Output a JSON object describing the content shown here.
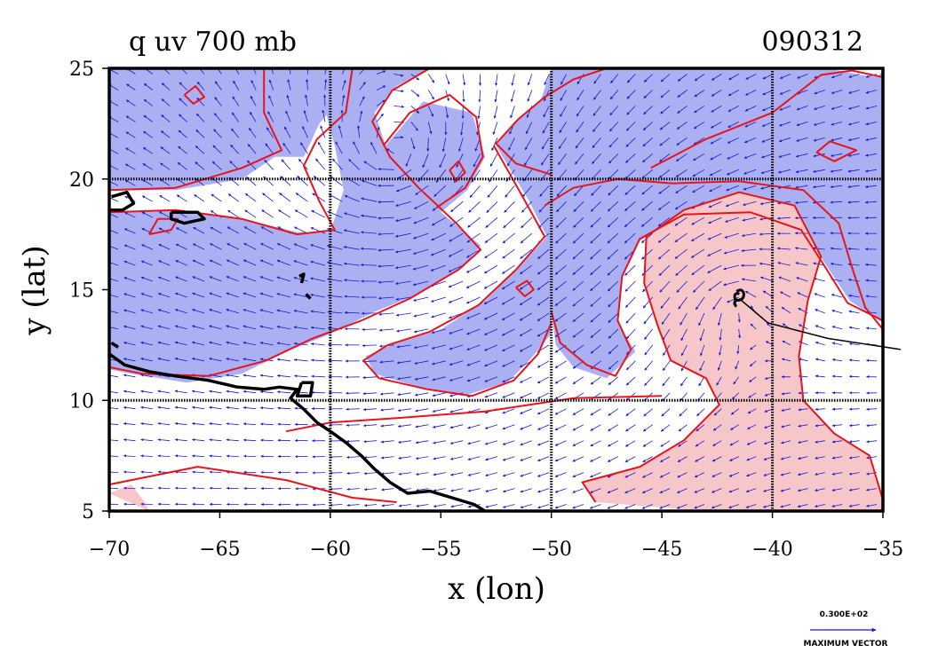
{
  "chart_data": {
    "type": "contour",
    "title_left": "q uv 700 mb",
    "title_right": "090312",
    "xlabel": "x (lon)",
    "ylabel": "y (lat)",
    "xlim": [
      -70,
      -35
    ],
    "ylim": [
      5,
      25
    ],
    "x_ticks": [
      {
        "value": -70,
        "label": "−70"
      },
      {
        "value": -65,
        "label": "−65"
      },
      {
        "value": -60,
        "label": "−60"
      },
      {
        "value": -55,
        "label": "−55"
      },
      {
        "value": -50,
        "label": "−50"
      },
      {
        "value": -45,
        "label": "−45"
      },
      {
        "value": -40,
        "label": "−40"
      },
      {
        "value": -35,
        "label": "−35"
      }
    ],
    "y_ticks": [
      {
        "value": 5,
        "label": "5"
      },
      {
        "value": 10,
        "label": "10"
      },
      {
        "value": 15,
        "label": "15"
      },
      {
        "value": 20,
        "label": "20"
      },
      {
        "value": 25,
        "label": "25"
      }
    ],
    "gridlines_lon": [
      -60,
      -50,
      -40
    ],
    "gridlines_lat": [
      10,
      20
    ],
    "vector_legend": {
      "value": "0.300E+02",
      "caption": "MAXIMUM VECTOR"
    },
    "colors": {
      "dry_fill": "#aab0f2",
      "moist_fill": "#f6c6c8",
      "contour": "#e8141c",
      "vector": "#1a1ad6",
      "coast": "#000000",
      "grid": "#000000"
    },
    "storm_center": {
      "lon": -41.5,
      "lat": 14.6
    },
    "storm_track": [
      [
        -41.5,
        14.6
      ],
      [
        -40.2,
        13.5
      ],
      [
        -37.5,
        12.8
      ],
      [
        -34.2,
        12.3
      ]
    ],
    "regions_dry": [
      [
        [
          -70,
          25
        ],
        [
          -63,
          25
        ],
        [
          -63.5,
          23
        ],
        [
          -62.5,
          21
        ],
        [
          -64,
          20
        ],
        [
          -67,
          19.5
        ],
        [
          -70,
          19.5
        ]
      ],
      [
        [
          -63,
          25
        ],
        [
          -59,
          25
        ],
        [
          -59.2,
          24
        ],
        [
          -60.5,
          22.5
        ],
        [
          -61.2,
          21
        ],
        [
          -62.5,
          21
        ],
        [
          -63.5,
          23
        ]
      ],
      [
        [
          -59,
          25
        ],
        [
          -55.5,
          25
        ],
        [
          -57,
          24.2
        ],
        [
          -58,
          23
        ],
        [
          -57.5,
          21.5
        ],
        [
          -56.2,
          20
        ],
        [
          -55,
          18.5
        ],
        [
          -53.2,
          17
        ],
        [
          -54,
          16
        ],
        [
          -56,
          14.8
        ],
        [
          -58,
          14
        ],
        [
          -60,
          13
        ],
        [
          -62,
          12.2
        ],
        [
          -64,
          11.2
        ],
        [
          -66.5,
          10.8
        ],
        [
          -69,
          11.2
        ],
        [
          -70,
          11.4
        ],
        [
          -70,
          18.5
        ],
        [
          -67,
          18.6
        ],
        [
          -64,
          18.2
        ],
        [
          -61.5,
          17.6
        ],
        [
          -60,
          17.6
        ],
        [
          -59.4,
          19.5
        ],
        [
          -59.8,
          21.5
        ],
        [
          -60.2,
          23
        ]
      ],
      [
        [
          -57.5,
          21.5
        ],
        [
          -55.8,
          23.5
        ],
        [
          -53.6,
          23
        ],
        [
          -53,
          21
        ],
        [
          -53.8,
          19.5
        ],
        [
          -55,
          18.5
        ],
        [
          -56.2,
          20
        ]
      ],
      [
        [
          -50,
          25
        ],
        [
          -37.5,
          25
        ],
        [
          -36,
          24.7
        ],
        [
          -35.2,
          24.6
        ],
        [
          -35,
          25
        ],
        [
          -35,
          13.5
        ],
        [
          -36.5,
          14.5
        ],
        [
          -37.5,
          16
        ],
        [
          -38.7,
          17.8
        ],
        [
          -41,
          18.5
        ],
        [
          -44,
          18.5
        ],
        [
          -46,
          17.2
        ],
        [
          -46.8,
          15.5
        ],
        [
          -47,
          13.5
        ],
        [
          -46.2,
          12.2
        ],
        [
          -47.5,
          11
        ],
        [
          -49,
          11.5
        ],
        [
          -49.8,
          12.5
        ],
        [
          -50,
          14
        ],
        [
          -50,
          20.2
        ],
        [
          -51.5,
          20.6
        ],
        [
          -52.5,
          21.5
        ],
        [
          -51.6,
          22.6
        ],
        [
          -50.5,
          23.5
        ]
      ],
      [
        [
          -52.5,
          21.5
        ],
        [
          -51,
          19
        ],
        [
          -50.2,
          17.4
        ],
        [
          -51.5,
          16
        ],
        [
          -53,
          14.5
        ],
        [
          -55,
          13.2
        ],
        [
          -57,
          12.6
        ],
        [
          -58.4,
          12
        ],
        [
          -58,
          11.2
        ],
        [
          -56,
          10.6
        ],
        [
          -54,
          10.2
        ],
        [
          -52,
          10.8
        ],
        [
          -51,
          11.8
        ],
        [
          -50,
          13
        ],
        [
          -50,
          20.2
        ],
        [
          -51.5,
          20.6
        ]
      ]
    ],
    "regions_moist": [
      [
        [
          -45.7,
          17.4
        ],
        [
          -44,
          18.6
        ],
        [
          -41.5,
          19.4
        ],
        [
          -39,
          18.8
        ],
        [
          -37.8,
          16.5
        ],
        [
          -38.4,
          14.5
        ],
        [
          -38.8,
          12
        ],
        [
          -38.6,
          10
        ],
        [
          -37.2,
          8.5
        ],
        [
          -35.6,
          7.5
        ],
        [
          -35,
          5.5
        ],
        [
          -35,
          5
        ],
        [
          -43,
          5
        ],
        [
          -48,
          5.4
        ],
        [
          -48.6,
          6.3
        ],
        [
          -46,
          7
        ],
        [
          -44,
          8.2
        ],
        [
          -42.4,
          9.8
        ],
        [
          -43,
          11
        ],
        [
          -44.6,
          11.8
        ],
        [
          -45.2,
          13.4
        ],
        [
          -45.8,
          15.3
        ]
      ],
      [
        [
          -70,
          5.8
        ],
        [
          -69,
          6.2
        ],
        [
          -68.4,
          5.4
        ],
        [
          -68.2,
          5
        ]
      ]
    ],
    "contours": [
      [
        [
          -70,
          19.5
        ],
        [
          -67,
          19.6
        ],
        [
          -64,
          20.5
        ],
        [
          -62.2,
          21.3
        ],
        [
          -63,
          23
        ],
        [
          -63,
          25
        ]
      ],
      [
        [
          -59,
          25
        ],
        [
          -59.3,
          23
        ],
        [
          -60.6,
          21.8
        ],
        [
          -61.2,
          20.6
        ],
        [
          -60.5,
          19
        ],
        [
          -59.8,
          17.7
        ],
        [
          -61.5,
          17.5
        ],
        [
          -64,
          18.2
        ],
        [
          -67,
          18.6
        ],
        [
          -70,
          18.5
        ]
      ],
      [
        [
          -55.5,
          25
        ],
        [
          -57.2,
          24
        ],
        [
          -58.1,
          22.6
        ],
        [
          -57.3,
          21
        ],
        [
          -56,
          19.6
        ],
        [
          -54.3,
          18
        ],
        [
          -53.2,
          16.8
        ],
        [
          -54.2,
          15.9
        ],
        [
          -56.4,
          14.6
        ],
        [
          -58.6,
          13.6
        ],
        [
          -60.8,
          12.8
        ],
        [
          -62.9,
          11.8
        ],
        [
          -65.5,
          11.1
        ],
        [
          -68.5,
          11.2
        ],
        [
          -70,
          11.5
        ]
      ],
      [
        [
          -57.6,
          21.5
        ],
        [
          -56.4,
          23
        ],
        [
          -54.6,
          23.8
        ],
        [
          -53.4,
          22.8
        ],
        [
          -53.1,
          21
        ],
        [
          -53.9,
          19.6
        ],
        [
          -55.2,
          18.7
        ]
      ],
      [
        [
          -52.6,
          21.5
        ],
        [
          -51.3,
          19.2
        ],
        [
          -50.3,
          17.4
        ],
        [
          -51.6,
          15.9
        ],
        [
          -53.3,
          14.3
        ],
        [
          -55.5,
          13.1
        ],
        [
          -57.4,
          12.5
        ],
        [
          -58.5,
          11.8
        ],
        [
          -57.8,
          11
        ],
        [
          -55.6,
          10.5
        ],
        [
          -53.6,
          10.2
        ],
        [
          -51.7,
          10.9
        ],
        [
          -50.6,
          12.1
        ],
        [
          -50,
          13.5
        ]
      ],
      [
        [
          -50,
          20.2
        ],
        [
          -51.6,
          20.7
        ],
        [
          -52.5,
          21.6
        ],
        [
          -51.5,
          22.7
        ],
        [
          -50.3,
          23.7
        ],
        [
          -49,
          24.5
        ],
        [
          -47.5,
          25
        ]
      ],
      [
        [
          -45.5,
          20.5
        ],
        [
          -43,
          21.8
        ],
        [
          -40,
          23
        ],
        [
          -37.8,
          24.7
        ],
        [
          -36.4,
          24.9
        ],
        [
          -35,
          24.6
        ]
      ],
      [
        [
          -50.3,
          18.8
        ],
        [
          -49,
          19.6
        ],
        [
          -47,
          20
        ],
        [
          -44.5,
          19.8
        ],
        [
          -41.5,
          19.9
        ],
        [
          -38.6,
          19.5
        ],
        [
          -37,
          18
        ],
        [
          -36.4,
          16
        ],
        [
          -35.8,
          14.2
        ],
        [
          -35,
          13.2
        ]
      ],
      [
        [
          -50,
          14
        ],
        [
          -49.6,
          12.6
        ],
        [
          -48.4,
          11.6
        ],
        [
          -47.1,
          11.1
        ],
        [
          -46.4,
          12.3
        ],
        [
          -47,
          13.6
        ],
        [
          -46.8,
          15.6
        ],
        [
          -46,
          17.3
        ],
        [
          -44,
          18.4
        ],
        [
          -41,
          18.5
        ],
        [
          -38.7,
          17.7
        ],
        [
          -37.6,
          16
        ],
        [
          -36.6,
          14.4
        ],
        [
          -35,
          13.6
        ]
      ],
      [
        [
          -45.7,
          17.4
        ],
        [
          -44,
          18.6
        ],
        [
          -41.5,
          19.4
        ],
        [
          -39,
          18.8
        ],
        [
          -37.8,
          16.5
        ],
        [
          -38.4,
          14.5
        ],
        [
          -38.8,
          12
        ],
        [
          -38.6,
          10
        ],
        [
          -37.2,
          8.5
        ],
        [
          -35.6,
          7.5
        ],
        [
          -35,
          5.5
        ]
      ],
      [
        [
          -48,
          5.4
        ],
        [
          -48.6,
          6.3
        ],
        [
          -46,
          7
        ],
        [
          -44,
          8.2
        ],
        [
          -42.4,
          9.8
        ],
        [
          -43,
          11
        ],
        [
          -44.6,
          11.8
        ],
        [
          -45.2,
          13.4
        ],
        [
          -45.8,
          15.3
        ],
        [
          -45.7,
          17.4
        ]
      ],
      [
        [
          -70,
          6.2
        ],
        [
          -66,
          7
        ],
        [
          -62,
          6.4
        ],
        [
          -59,
          5.6
        ],
        [
          -57,
          5.4
        ]
      ],
      [
        [
          -45,
          10.2
        ],
        [
          -49,
          10.1
        ],
        [
          -53,
          9.5
        ],
        [
          -57,
          9.2
        ],
        [
          -60,
          9
        ],
        [
          -62,
          8.6
        ]
      ],
      [
        [
          -38,
          21.2
        ],
        [
          -37.4,
          21.7
        ],
        [
          -36.2,
          21.3
        ],
        [
          -37.2,
          20.8
        ],
        [
          -38,
          21.2
        ]
      ],
      [
        [
          -68.2,
          17.5
        ],
        [
          -67.2,
          17.7
        ],
        [
          -66.9,
          18.2
        ],
        [
          -67.8,
          18.2
        ],
        [
          -68.2,
          17.5
        ]
      ],
      [
        [
          -54.6,
          20.4
        ],
        [
          -54.2,
          20.8
        ],
        [
          -53.9,
          20.3
        ],
        [
          -54.3,
          19.9
        ],
        [
          -54.6,
          20.4
        ]
      ],
      [
        [
          -51.6,
          15.1
        ],
        [
          -51.1,
          15.4
        ],
        [
          -50.8,
          15
        ],
        [
          -51.2,
          14.7
        ],
        [
          -51.6,
          15.1
        ]
      ],
      [
        [
          -66.6,
          23.8
        ],
        [
          -66.1,
          24.2
        ],
        [
          -65.7,
          23.7
        ],
        [
          -66.2,
          23.4
        ],
        [
          -66.6,
          23.8
        ]
      ]
    ],
    "coastlines": [
      [
        [
          -70,
          12.1
        ],
        [
          -69.3,
          11.6
        ],
        [
          -68.2,
          11.3
        ],
        [
          -67,
          11.1
        ],
        [
          -65.5,
          10.9
        ],
        [
          -64.2,
          10.6
        ],
        [
          -63,
          10.5
        ],
        [
          -62.3,
          10.6
        ],
        [
          -61.5,
          10.5
        ],
        [
          -61.8,
          10.1
        ],
        [
          -61.2,
          9.6
        ],
        [
          -60.6,
          9
        ],
        [
          -60,
          8.6
        ],
        [
          -59.3,
          8.1
        ],
        [
          -58.6,
          7.5
        ],
        [
          -58,
          6.9
        ],
        [
          -57.3,
          6.3
        ],
        [
          -56.5,
          5.8
        ],
        [
          -55.5,
          5.9
        ],
        [
          -54.5,
          5.6
        ],
        [
          -53.5,
          5.3
        ],
        [
          -53,
          5
        ]
      ],
      [
        [
          -69.9,
          19.2
        ],
        [
          -69.2,
          19.4
        ],
        [
          -68.9,
          18.9
        ],
        [
          -69.4,
          18.6
        ],
        [
          -70,
          18.6
        ]
      ],
      [
        [
          -67.2,
          18.5
        ],
        [
          -66,
          18.5
        ],
        [
          -65.7,
          18.2
        ],
        [
          -66.6,
          18
        ],
        [
          -67.2,
          18.2
        ],
        [
          -67.2,
          18.5
        ]
      ],
      [
        [
          -61.3,
          10.8
        ],
        [
          -60.8,
          10.8
        ],
        [
          -60.9,
          10.2
        ],
        [
          -61.5,
          10.2
        ],
        [
          -61.3,
          10.8
        ]
      ],
      [
        [
          -61.4,
          15.6
        ],
        [
          -61.2,
          15.7
        ],
        [
          -61.3,
          15.3
        ]
      ],
      [
        [
          -61.1,
          14.8
        ],
        [
          -60.9,
          14.6
        ]
      ],
      [
        [
          -69.9,
          12.6
        ],
        [
          -69.6,
          12.4
        ]
      ]
    ]
  }
}
